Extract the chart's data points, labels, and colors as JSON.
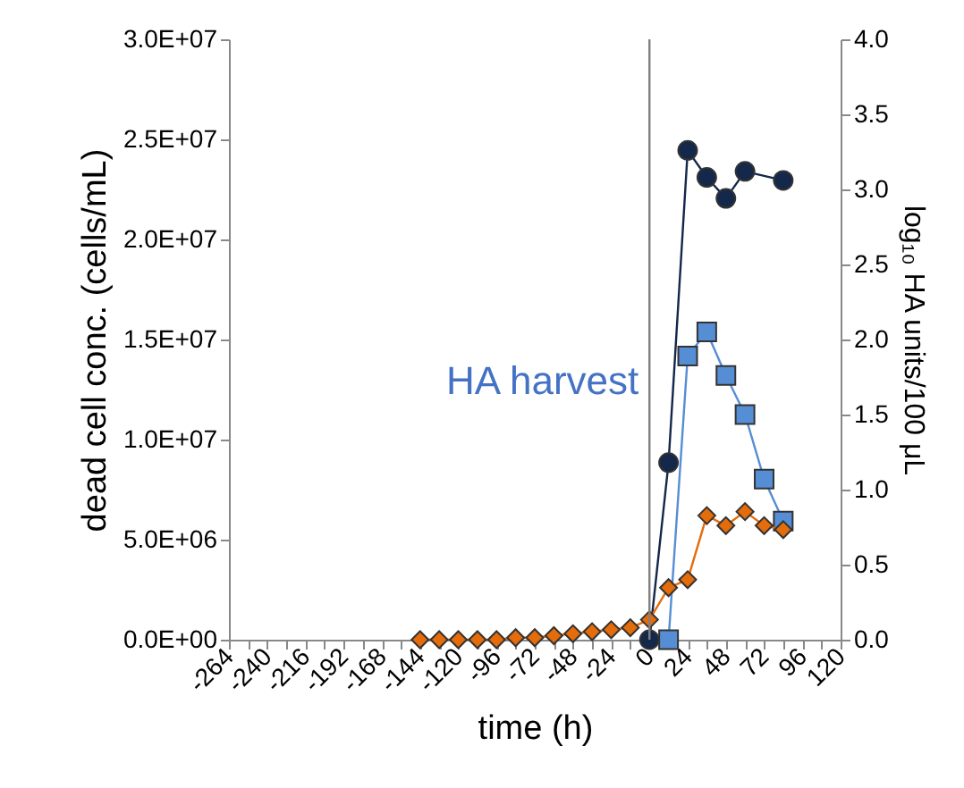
{
  "chart_data": {
    "type": "line",
    "xlabel": "time (h)",
    "ylabel": "dead cell conc. (cells/mL)",
    "y2label": "log₁₀ HA units/100 μL",
    "series": [
      {
        "color": "#e46c0a",
        "marker": "diamond",
        "axis": "y",
        "x": [
          -144,
          -132,
          -120,
          -108,
          -96,
          -84,
          -72,
          -60,
          -48,
          -36,
          -24,
          -12,
          0,
          12,
          24,
          36,
          48,
          60,
          72,
          84
        ],
        "values": [
          0,
          0,
          0,
          0,
          0,
          100000,
          100000,
          200000,
          300000,
          400000,
          500000,
          600000,
          1000000,
          2600000,
          3000000,
          6200000,
          5700000,
          6400000,
          5700000,
          5500000
        ]
      },
      {
        "color": "#14284b",
        "marker": "circle",
        "axis": "y2",
        "x": [
          0,
          12,
          24,
          36,
          48,
          60,
          84
        ],
        "values": [
          0,
          1.18,
          3.26,
          3.08,
          2.94,
          3.12,
          3.06
        ]
      },
      {
        "color": "#558ed5",
        "marker": "square",
        "axis": "y2",
        "x": [
          12,
          24,
          36,
          48,
          60,
          72,
          84
        ],
        "values": [
          0,
          1.89,
          2.05,
          1.76,
          1.5,
          1.07,
          0.79
        ]
      }
    ],
    "xlim": [
      -264,
      120
    ],
    "xticks": [
      -264,
      {
        "value": -252,
        "label": null
      },
      -240,
      {
        "value": -228,
        "label": null
      },
      -216,
      {
        "value": -204,
        "label": null
      },
      -192,
      {
        "value": -180,
        "label": null
      },
      -168,
      {
        "value": -156,
        "label": null
      },
      -144,
      {
        "value": -132,
        "label": null
      },
      -120,
      {
        "value": -108,
        "label": null
      },
      -96,
      {
        "value": -84,
        "label": null
      },
      -72,
      {
        "value": -60,
        "label": null
      },
      -48,
      {
        "value": -36,
        "label": null
      },
      -24,
      {
        "value": -12,
        "label": null
      },
      0,
      {
        "value": 12,
        "label": null
      },
      24,
      {
        "value": 36,
        "label": null
      },
      48,
      {
        "value": 60,
        "label": null
      },
      72,
      {
        "value": 84,
        "label": null
      },
      96,
      {
        "value": 108,
        "label": null
      },
      120
    ],
    "ylim": [
      0,
      30000000
    ],
    "yticks": [
      {
        "value": 0,
        "label": "0.0E+00"
      },
      {
        "value": 5000000,
        "label": "5.0E+06"
      },
      {
        "value": 10000000,
        "label": "1.0E+07"
      },
      {
        "value": 15000000,
        "label": "1.5E+07"
      },
      {
        "value": 20000000,
        "label": "2.0E+07"
      },
      {
        "value": 25000000,
        "label": "2.5E+07"
      },
      {
        "value": 30000000,
        "label": "3.0E+07"
      }
    ],
    "y2lim": [
      0,
      4
    ],
    "y2ticks": [
      {
        "value": 0,
        "label": "0.0"
      },
      {
        "value": 0.5,
        "label": "0.5"
      },
      {
        "value": 1,
        "label": "1.0"
      },
      {
        "value": 1.5,
        "label": "1.5"
      },
      {
        "value": 2,
        "label": "2.0"
      },
      {
        "value": 2.5,
        "label": "2.5"
      },
      {
        "value": 3,
        "label": "3.0"
      },
      {
        "value": 3.5,
        "label": "3.5"
      },
      {
        "value": 4,
        "label": "4.0"
      }
    ],
    "ref_lines": [
      {
        "axis": "x",
        "value": 0,
        "label": "HA harvest",
        "color": "#808080"
      }
    ],
    "grid": false,
    "line_style": "solid"
  }
}
